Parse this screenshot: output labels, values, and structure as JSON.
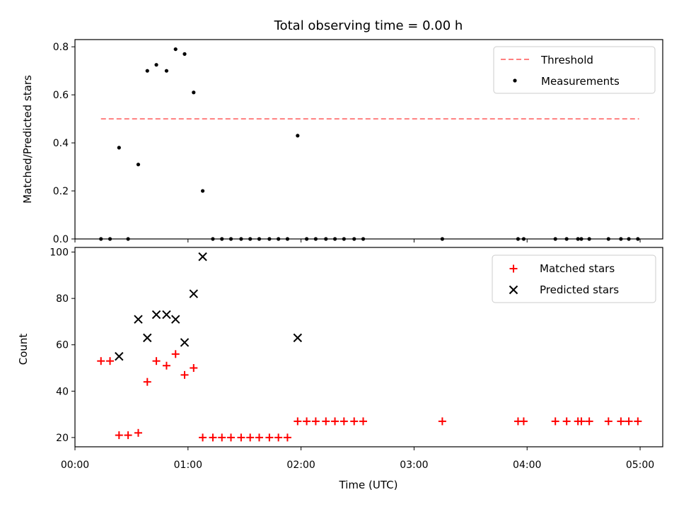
{
  "title": "Total observing time = 0.00 h",
  "chart_data": [
    {
      "type": "scatter",
      "ylabel": "Matched/Predicted stars",
      "xlim": [
        0,
        5.2
      ],
      "ylim": [
        0,
        0.83
      ],
      "yticks": [
        "0.0",
        "0.2",
        "0.4",
        "0.6",
        "0.8"
      ],
      "series": [
        {
          "name": "Threshold",
          "style": "dashed-line",
          "color": "#ff7f7f",
          "x": [
            0.23,
            4.99
          ],
          "y": [
            0.5,
            0.5
          ]
        },
        {
          "name": "Measurements",
          "style": "dot",
          "color": "#000000",
          "x": [
            0.23,
            0.31,
            0.39,
            0.47,
            0.56,
            0.64,
            0.72,
            0.81,
            0.89,
            0.97,
            1.05,
            1.13,
            1.22,
            1.3,
            1.38,
            1.47,
            1.55,
            1.63,
            1.72,
            1.8,
            1.88,
            1.97,
            2.05,
            2.13,
            2.22,
            2.3,
            2.38,
            2.47,
            2.55,
            3.25,
            3.92,
            3.97,
            4.25,
            4.35,
            4.45,
            4.48,
            4.55,
            4.72,
            4.83,
            4.9,
            4.98
          ],
          "y": [
            0,
            0,
            0.38,
            0,
            0.31,
            0.7,
            0.725,
            0.7,
            0.79,
            0.77,
            0.61,
            0.2,
            0,
            0,
            0,
            0,
            0,
            0,
            0,
            0,
            0,
            0.43,
            0,
            0,
            0,
            0,
            0,
            0,
            0,
            0,
            0,
            0,
            0,
            0,
            0,
            0,
            0,
            0,
            0,
            0,
            0
          ]
        }
      ],
      "legend": "upper right"
    },
    {
      "type": "scatter",
      "xlabel": "Time (UTC)",
      "ylabel": "Count",
      "xlim": [
        0,
        5.2
      ],
      "ylim": [
        16,
        102
      ],
      "yticks": [
        "20",
        "40",
        "60",
        "80",
        "100"
      ],
      "xticks": [
        "00:00",
        "01:00",
        "02:00",
        "03:00",
        "04:00",
        "05:00"
      ],
      "series": [
        {
          "name": "Matched stars",
          "style": "plus",
          "color": "#ff0000",
          "x": [
            0.23,
            0.31,
            0.39,
            0.47,
            0.56,
            0.64,
            0.72,
            0.81,
            0.89,
            0.97,
            1.05,
            1.13,
            1.22,
            1.3,
            1.38,
            1.47,
            1.55,
            1.63,
            1.72,
            1.8,
            1.88,
            1.97,
            2.05,
            2.13,
            2.22,
            2.3,
            2.38,
            2.47,
            2.55,
            3.25,
            3.92,
            3.97,
            4.25,
            4.35,
            4.45,
            4.48,
            4.55,
            4.72,
            4.83,
            4.9,
            4.98
          ],
          "y": [
            53,
            53,
            21,
            21,
            22,
            44,
            53,
            51,
            56,
            47,
            50,
            20,
            20,
            20,
            20,
            20,
            20,
            20,
            20,
            20,
            20,
            27,
            27,
            27,
            27,
            27,
            27,
            27,
            27,
            27,
            27,
            27,
            27,
            27,
            27,
            27,
            27,
            27,
            27,
            27,
            27
          ]
        },
        {
          "name": "Predicted stars",
          "style": "x",
          "color": "#000000",
          "x": [
            0.39,
            0.56,
            0.64,
            0.72,
            0.81,
            0.89,
            0.97,
            1.05,
            1.13,
            1.97
          ],
          "y": [
            55,
            71,
            63,
            73,
            73,
            71,
            61,
            82,
            98,
            63
          ]
        }
      ],
      "legend": "upper right"
    }
  ]
}
